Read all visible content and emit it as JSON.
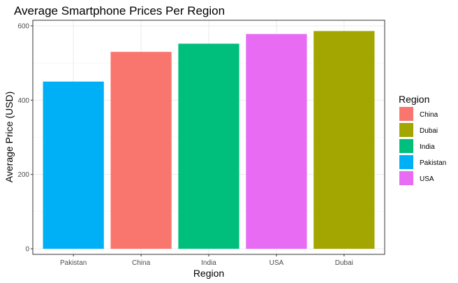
{
  "chart_data": {
    "type": "bar",
    "title": "Average Smartphone Prices Per Region",
    "xlabel": "Region",
    "ylabel": "Average Price (USD)",
    "categories": [
      "Pakistan",
      "China",
      "India",
      "USA",
      "Dubai"
    ],
    "values": [
      450,
      530,
      552,
      578,
      586
    ],
    "colors": [
      "#00B0F6",
      "#F8766D",
      "#00BF7D",
      "#E76BF3",
      "#A3A500"
    ],
    "ylim": [
      -15,
      615
    ],
    "yticks": [
      0,
      200,
      400,
      600
    ],
    "grid": true,
    "legend": {
      "title": "Region",
      "placement": "right",
      "entries": [
        {
          "label": "China",
          "color": "#F8766D"
        },
        {
          "label": "Dubai",
          "color": "#A3A500"
        },
        {
          "label": "India",
          "color": "#00BF7D"
        },
        {
          "label": "Pakistan",
          "color": "#00B0F6"
        },
        {
          "label": "USA",
          "color": "#E76BF3"
        }
      ]
    }
  }
}
